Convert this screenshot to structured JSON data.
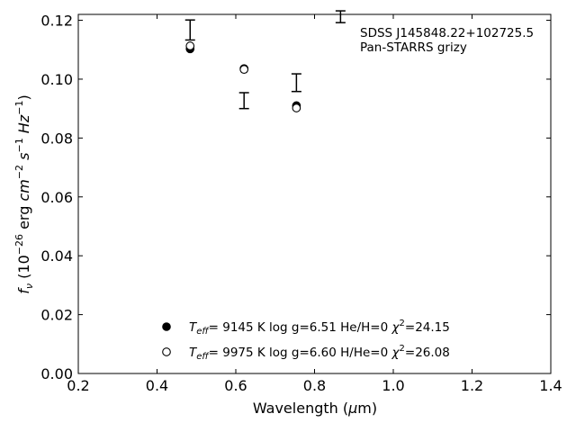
{
  "chart_data": {
    "type": "scatter",
    "xlabel": "Wavelength (μm)",
    "ylabel": "f_ν (10^-26 erg cm^-2 s^-1 Hz^-1)",
    "xlim": [
      0.2,
      1.4
    ],
    "ylim": [
      0.0,
      0.122
    ],
    "xticks": [
      0.2,
      0.4,
      0.6,
      0.8,
      1.0,
      1.2,
      1.4
    ],
    "xtick_labels": [
      "0.2",
      "0.4",
      "0.6",
      "0.8",
      "1.0",
      "1.2",
      "1.4"
    ],
    "yticks": [
      0.0,
      0.02,
      0.04,
      0.06,
      0.08,
      0.1,
      0.12
    ],
    "ytick_labels": [
      "0.00",
      "0.02",
      "0.04",
      "0.06",
      "0.08",
      "0.10",
      "0.12"
    ],
    "grid": false,
    "annotation": [
      "SDSS J145848.22+102725.5",
      "Pan-STARRS grizy"
    ],
    "observed": {
      "x": [
        0.484,
        0.621,
        0.754,
        0.866
      ],
      "y": [
        0.1167,
        0.0927,
        0.0988,
        0.1212
      ],
      "yerr": [
        0.0034,
        0.0027,
        0.003,
        0.002
      ]
    },
    "series": [
      {
        "name": "Teff= 9145 K log g=6.51 He/H=0 χ2=24.15",
        "marker": "filled-circle",
        "x": [
          0.484,
          0.621,
          0.754
        ],
        "y": [
          0.1103,
          0.1036,
          0.091
        ]
      },
      {
        "name": "Teff= 9975 K log g=6.60 H/He=0 χ2=26.08",
        "marker": "open-circle",
        "x": [
          0.484,
          0.621,
          0.754
        ],
        "y": [
          0.1113,
          0.1033,
          0.0902
        ]
      }
    ],
    "legend": {
      "placement": "bottom-center",
      "entries": [
        {
          "teff": "9145",
          "logg": "6.51",
          "abund": "He/H=0",
          "chi2": "24.15"
        },
        {
          "teff": "9975",
          "logg": "6.60",
          "abund": "H/He=0",
          "chi2": "26.08"
        }
      ]
    }
  }
}
